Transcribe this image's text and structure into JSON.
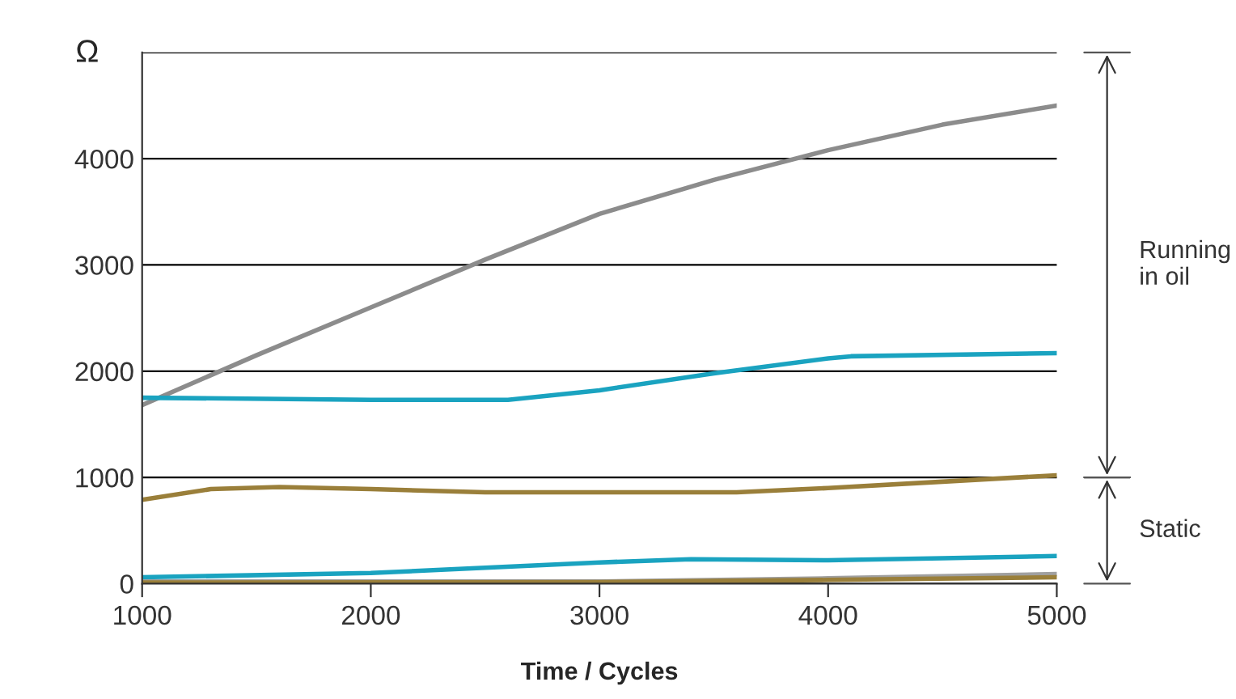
{
  "chart_data": {
    "type": "line",
    "ylabel": "Ω",
    "xlabel": "Time / Cycles",
    "xlim": [
      1000,
      5000
    ],
    "xticks": [
      1000,
      2000,
      3000,
      4000,
      5000
    ],
    "ylim": [
      0,
      5000
    ],
    "yticks": [
      0,
      1000,
      2000,
      3000,
      4000,
      {
        "value": 5000,
        "label": null
      }
    ],
    "grid": "y",
    "line_style": "solid",
    "marker": "none",
    "annotations": [
      "Running\nin oil",
      "Static"
    ],
    "series": [
      {
        "color": "#8c8c8c",
        "x": [
          1000,
          1500,
          2000,
          2500,
          3000,
          3500,
          4000,
          4500,
          5000
        ],
        "values": [
          1680,
          2150,
          2600,
          3050,
          3480,
          3800,
          4080,
          4320,
          4500
        ]
      },
      {
        "color": "#1aa3c0",
        "x": [
          1000,
          2000,
          2600,
          3000,
          3500,
          4000,
          4100,
          5000
        ],
        "values": [
          1750,
          1730,
          1730,
          1820,
          1980,
          2120,
          2140,
          2170
        ]
      },
      {
        "color": "#9a7f3a",
        "x": [
          1000,
          1300,
          1600,
          2000,
          2500,
          3000,
          3600,
          4000,
          4500,
          5000
        ],
        "values": [
          790,
          890,
          910,
          890,
          860,
          860,
          860,
          900,
          960,
          1020
        ]
      },
      {
        "color": "#1aa3c0",
        "x": [
          1000,
          2000,
          2500,
          3000,
          3400,
          4000,
          4500,
          5000
        ],
        "values": [
          60,
          100,
          150,
          200,
          230,
          220,
          240,
          260
        ]
      },
      {
        "color": "#a0a0a0",
        "x": [
          1000,
          3000,
          4000,
          5000
        ],
        "values": [
          20,
          20,
          50,
          90
        ]
      },
      {
        "color": "#9a7f3a",
        "x": [
          1000,
          3000,
          4000,
          5000
        ],
        "values": [
          10,
          15,
          35,
          60
        ]
      }
    ]
  }
}
